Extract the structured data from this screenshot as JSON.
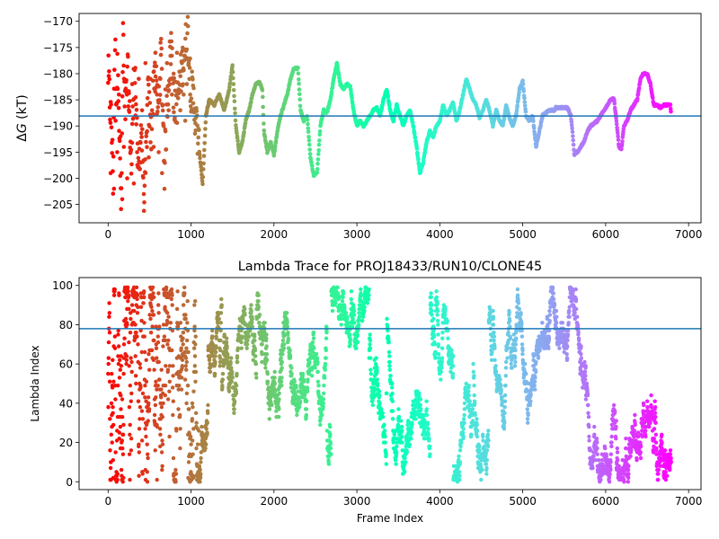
{
  "chart_data": [
    {
      "type": "scatter",
      "title": "",
      "xlabel": "",
      "ylabel_prefix": "Δ",
      "ylabel_symbol": "G",
      "ylabel_suffix": " (kT)",
      "xlim": [
        -350,
        7150
      ],
      "ylim": [
        -208.5,
        -168.5
      ],
      "xticks": [
        0,
        1000,
        2000,
        3000,
        4000,
        5000,
        6000,
        7000
      ],
      "xtick_labels": [
        "0",
        "1000",
        "2000",
        "3000",
        "4000",
        "5000",
        "6000",
        "7000"
      ],
      "yticks": [
        -205,
        -200,
        -195,
        -190,
        -185,
        -180,
        -175,
        -170
      ],
      "ytick_labels": [
        "−205",
        "−200",
        "−195",
        "−190",
        "−185",
        "−180",
        "−175",
        "−170"
      ],
      "hline": -188.1,
      "hline_color": "#1f77b4",
      "colormap": "rainbow",
      "color_by": "x",
      "x_max": 6790,
      "grid": false,
      "legend": "none",
      "trace": [
        [
          0,
          -180
        ],
        [
          40,
          -190
        ],
        [
          60,
          -200
        ],
        [
          80,
          -171
        ],
        [
          100,
          -185
        ],
        [
          120,
          -177
        ],
        [
          140,
          -196
        ],
        [
          160,
          -206
        ],
        [
          180,
          -172
        ],
        [
          200,
          -188
        ],
        [
          240,
          -180
        ],
        [
          280,
          -198
        ],
        [
          320,
          -176
        ],
        [
          360,
          -200
        ],
        [
          400,
          -190
        ],
        [
          440,
          -205
        ],
        [
          480,
          -184
        ],
        [
          520,
          -192
        ],
        [
          560,
          -178
        ],
        [
          600,
          -188
        ],
        [
          640,
          -176
        ],
        [
          680,
          -198
        ],
        [
          720,
          -183
        ],
        [
          760,
          -174
        ],
        [
          800,
          -186
        ],
        [
          840,
          -185
        ],
        [
          880,
          -180
        ],
        [
          920,
          -176
        ],
        [
          960,
          -172
        ],
        [
          1000,
          -183
        ],
        [
          1040,
          -186
        ],
        [
          1080,
          -192
        ],
        [
          1120,
          -198
        ],
        [
          1140,
          -201
        ],
        [
          1180,
          -188
        ],
        [
          1220,
          -185
        ],
        [
          1280,
          -186
        ],
        [
          1340,
          -184
        ],
        [
          1400,
          -187
        ],
        [
          1460,
          -183
        ],
        [
          1500,
          -178.5
        ],
        [
          1540,
          -190
        ],
        [
          1580,
          -195
        ],
        [
          1620,
          -193
        ],
        [
          1660,
          -189
        ],
        [
          1700,
          -187
        ],
        [
          1740,
          -184
        ],
        [
          1780,
          -182
        ],
        [
          1820,
          -181.5
        ],
        [
          1860,
          -183
        ],
        [
          1880,
          -191
        ],
        [
          1920,
          -195
        ],
        [
          1960,
          -193
        ],
        [
          2000,
          -195.5
        ],
        [
          2040,
          -191
        ],
        [
          2080,
          -188
        ],
        [
          2120,
          -186
        ],
        [
          2160,
          -184
        ],
        [
          2200,
          -181
        ],
        [
          2240,
          -179
        ],
        [
          2290,
          -179
        ],
        [
          2320,
          -187
        ],
        [
          2360,
          -189
        ],
        [
          2400,
          -188
        ],
        [
          2440,
          -196
        ],
        [
          2480,
          -199.5
        ],
        [
          2520,
          -199
        ],
        [
          2560,
          -190
        ],
        [
          2600,
          -187
        ],
        [
          2640,
          -187.5
        ],
        [
          2680,
          -185
        ],
        [
          2720,
          -181
        ],
        [
          2760,
          -178
        ],
        [
          2800,
          -182
        ],
        [
          2840,
          -183
        ],
        [
          2880,
          -182
        ],
        [
          2920,
          -182.5
        ],
        [
          2960,
          -187
        ],
        [
          3000,
          -190
        ],
        [
          3040,
          -189
        ],
        [
          3080,
          -190
        ],
        [
          3120,
          -189
        ],
        [
          3160,
          -188
        ],
        [
          3200,
          -187
        ],
        [
          3240,
          -186.5
        ],
        [
          3280,
          -188
        ],
        [
          3320,
          -185
        ],
        [
          3360,
          -183
        ],
        [
          3400,
          -187
        ],
        [
          3440,
          -189
        ],
        [
          3480,
          -186
        ],
        [
          3520,
          -188
        ],
        [
          3560,
          -190
        ],
        [
          3600,
          -188
        ],
        [
          3640,
          -187
        ],
        [
          3680,
          -190
        ],
        [
          3720,
          -194
        ],
        [
          3760,
          -199
        ],
        [
          3800,
          -197
        ],
        [
          3840,
          -193
        ],
        [
          3880,
          -191
        ],
        [
          3920,
          -192
        ],
        [
          3960,
          -190
        ],
        [
          4000,
          -189
        ],
        [
          4040,
          -186
        ],
        [
          4080,
          -188
        ],
        [
          4120,
          -187
        ],
        [
          4160,
          -185.5
        ],
        [
          4200,
          -189
        ],
        [
          4240,
          -187
        ],
        [
          4280,
          -184
        ],
        [
          4320,
          -181
        ],
        [
          4360,
          -183
        ],
        [
          4400,
          -185
        ],
        [
          4440,
          -186
        ],
        [
          4480,
          -188.5
        ],
        [
          4520,
          -187
        ],
        [
          4560,
          -185
        ],
        [
          4600,
          -187
        ],
        [
          4640,
          -190
        ],
        [
          4680,
          -187
        ],
        [
          4720,
          -189
        ],
        [
          4760,
          -190
        ],
        [
          4800,
          -186
        ],
        [
          4840,
          -188.5
        ],
        [
          4880,
          -190
        ],
        [
          4920,
          -188
        ],
        [
          4960,
          -183
        ],
        [
          5000,
          -181.5
        ],
        [
          5040,
          -188
        ],
        [
          5080,
          -189
        ],
        [
          5120,
          -188
        ],
        [
          5160,
          -194
        ],
        [
          5200,
          -191
        ],
        [
          5240,
          -188
        ],
        [
          5280,
          -187.5
        ],
        [
          5320,
          -187
        ],
        [
          5380,
          -187
        ],
        [
          5400,
          -186.5
        ],
        [
          5460,
          -186.5
        ],
        [
          5540,
          -186.5
        ],
        [
          5580,
          -188
        ],
        [
          5600,
          -191
        ],
        [
          5620,
          -195.5
        ],
        [
          5660,
          -195
        ],
        [
          5700,
          -194
        ],
        [
          5740,
          -193
        ],
        [
          5780,
          -191
        ],
        [
          5820,
          -190
        ],
        [
          5860,
          -189.5
        ],
        [
          5900,
          -189
        ],
        [
          5940,
          -188
        ],
        [
          5980,
          -187
        ],
        [
          6020,
          -186
        ],
        [
          6060,
          -185
        ],
        [
          6100,
          -184.8
        ],
        [
          6130,
          -189
        ],
        [
          6160,
          -194
        ],
        [
          6190,
          -194.5
        ],
        [
          6220,
          -190
        ],
        [
          6260,
          -189
        ],
        [
          6300,
          -187
        ],
        [
          6340,
          -186
        ],
        [
          6380,
          -185
        ],
        [
          6420,
          -181
        ],
        [
          6450,
          -180
        ],
        [
          6500,
          -180
        ],
        [
          6540,
          -182
        ],
        [
          6580,
          -186
        ],
        [
          6620,
          -186
        ],
        [
          6660,
          -186.5
        ],
        [
          6700,
          -186
        ],
        [
          6740,
          -186
        ],
        [
          6780,
          -186
        ],
        [
          6790,
          -188
        ]
      ],
      "early_scatter": [
        [
          30,
          -199
        ],
        [
          70,
          -202
        ],
        [
          90,
          -189
        ],
        [
          110,
          -195
        ],
        [
          130,
          -184
        ],
        [
          150,
          -192
        ],
        [
          170,
          -204
        ],
        [
          190,
          -194
        ],
        [
          210,
          -183
        ],
        [
          230,
          -200
        ],
        [
          250,
          -187
        ],
        [
          270,
          -193
        ],
        [
          290,
          -182
        ],
        [
          310,
          -201
        ],
        [
          330,
          -188
        ],
        [
          350,
          -195
        ],
        [
          370,
          -181
        ],
        [
          390,
          -197
        ],
        [
          410,
          -187
        ],
        [
          430,
          -203
        ],
        [
          450,
          -178
        ],
        [
          470,
          -191
        ],
        [
          490,
          -196
        ],
        [
          510,
          -181
        ],
        [
          530,
          -187
        ],
        [
          550,
          -194
        ],
        [
          570,
          -176
        ],
        [
          590,
          -184
        ],
        [
          610,
          -195
        ],
        [
          630,
          -181
        ],
        [
          650,
          -199
        ],
        [
          670,
          -190
        ],
        [
          690,
          -183
        ],
        [
          710,
          -178
        ],
        [
          730,
          -187
        ],
        [
          750,
          -181
        ],
        [
          770,
          -184
        ],
        [
          790,
          -180
        ],
        [
          810,
          -189
        ],
        [
          830,
          -176
        ],
        [
          850,
          -183
        ],
        [
          870,
          -187
        ],
        [
          890,
          -178
        ],
        [
          910,
          -184
        ],
        [
          930,
          -189
        ],
        [
          950,
          -182
        ],
        [
          970,
          -178
        ],
        [
          990,
          -184
        ]
      ]
    },
    {
      "type": "scatter",
      "title": "Lambda Trace for PROJ18433/RUN10/CLONE45",
      "xlabel": "Frame Index",
      "ylabel": "Lambda Index",
      "xlim": [
        -350,
        7150
      ],
      "ylim": [
        -4,
        104
      ],
      "xticks": [
        0,
        1000,
        2000,
        3000,
        4000,
        5000,
        6000,
        7000
      ],
      "xtick_labels": [
        "0",
        "1000",
        "2000",
        "3000",
        "4000",
        "5000",
        "6000",
        "7000"
      ],
      "yticks": [
        0,
        20,
        40,
        60,
        80,
        100
      ],
      "ytick_labels": [
        "0",
        "20",
        "40",
        "60",
        "80",
        "100"
      ],
      "hline": 78,
      "hline_color": "#1f77b4",
      "colormap": "rainbow",
      "color_by": "x",
      "x_min": 0,
      "x_max": 6790,
      "y_min": 0,
      "y_max": 99,
      "n_points": 6790,
      "grid": false,
      "legend": "none"
    }
  ]
}
